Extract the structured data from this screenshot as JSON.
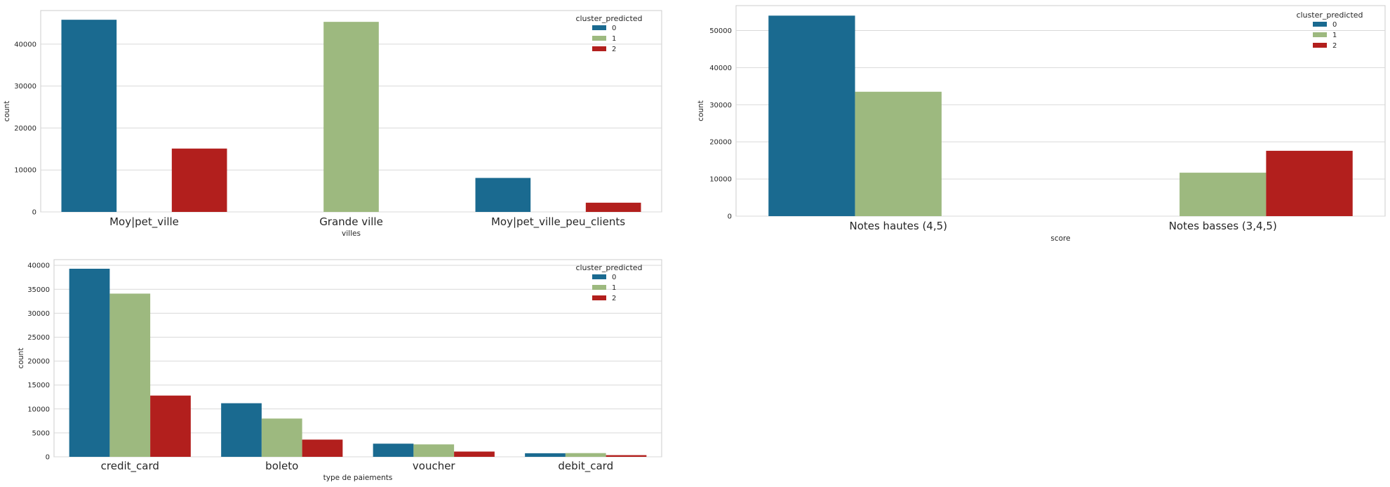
{
  "colors": {
    "0": "#1a6a90",
    "1": "#9db97f",
    "2": "#b21f1d"
  },
  "chart_data": [
    {
      "type": "bar",
      "title": "",
      "xlabel": "villes",
      "ylabel": "count",
      "categories": [
        "Moy|pet_ville",
        "Grande ville",
        "Moy|pet_ville_peu_clients"
      ],
      "yticks": [
        0,
        10000,
        20000,
        30000,
        40000
      ],
      "ylim": [
        0,
        48000
      ],
      "grid": true,
      "legend": {
        "title": "cluster_predicted",
        "entries": [
          "0",
          "1",
          "2"
        ],
        "placement": "top-right"
      },
      "series": [
        {
          "name": "0",
          "values": [
            45800,
            0,
            8100
          ]
        },
        {
          "name": "1",
          "values": [
            0,
            45300,
            0
          ]
        },
        {
          "name": "2",
          "values": [
            15100,
            0,
            2200
          ]
        }
      ]
    },
    {
      "type": "bar",
      "title": "",
      "xlabel": "score",
      "ylabel": "count",
      "categories": [
        "Notes hautes (4,5)",
        "Notes basses (3,4,5)"
      ],
      "yticks": [
        0,
        10000,
        20000,
        30000,
        40000,
        50000
      ],
      "ylim": [
        0,
        56700
      ],
      "grid": true,
      "legend": {
        "title": "cluster_predicted",
        "entries": [
          "0",
          "1",
          "2"
        ],
        "placement": "top-right"
      },
      "series": [
        {
          "name": "0",
          "values": [
            54000,
            0
          ]
        },
        {
          "name": "1",
          "values": [
            33500,
            11700
          ]
        },
        {
          "name": "2",
          "values": [
            0,
            17600
          ]
        }
      ]
    },
    {
      "type": "bar",
      "title": "",
      "xlabel": "type de paiements",
      "ylabel": "count",
      "categories": [
        "credit_card",
        "boleto",
        "voucher",
        "debit_card"
      ],
      "yticks": [
        0,
        5000,
        10000,
        15000,
        20000,
        25000,
        30000,
        35000,
        40000
      ],
      "ylim": [
        0,
        41200
      ],
      "grid": true,
      "legend": {
        "title": "cluster_predicted",
        "entries": [
          "0",
          "1",
          "2"
        ],
        "placement": "top-right"
      },
      "series": [
        {
          "name": "0",
          "values": [
            39300,
            11200,
            2750,
            750
          ]
        },
        {
          "name": "1",
          "values": [
            34100,
            8000,
            2600,
            780
          ]
        },
        {
          "name": "2",
          "values": [
            12800,
            3600,
            1100,
            350
          ]
        }
      ]
    }
  ]
}
